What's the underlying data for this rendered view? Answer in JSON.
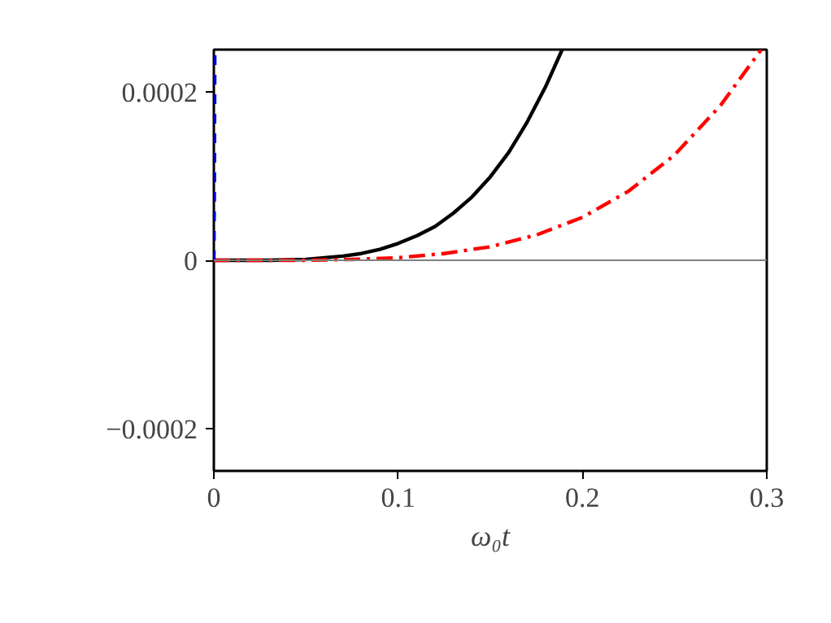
{
  "chart_data": {
    "type": "line",
    "xlabel": "ω₀t",
    "xlim": [
      0,
      0.3
    ],
    "xticks": [
      0,
      0.1,
      0.2,
      0.3
    ],
    "ylim": [
      -0.00025,
      0.00025
    ],
    "yticks": [
      {
        "value": -0.0002,
        "label": "−0.0002"
      },
      0,
      0.0002
    ],
    "grid": false,
    "marker": "none",
    "series": [
      {
        "color": "#000000",
        "line_style": "solid",
        "x": [
          0,
          0.03,
          0.05,
          0.06,
          0.07,
          0.08,
          0.09,
          0.1,
          0.11,
          0.12,
          0.13,
          0.14,
          0.15,
          0.16,
          0.17,
          0.18,
          0.189
        ],
        "values": [
          0,
          0,
          1e-06,
          3e-06,
          5e-06,
          8e-06,
          1.3e-05,
          2e-05,
          2.9e-05,
          4e-05,
          5.6e-05,
          7.5e-05,
          9.9e-05,
          0.000128,
          0.000164,
          0.000206,
          0.00025
        ]
      },
      {
        "color": "#ff0000",
        "line_style": "dashdot",
        "x": [
          0,
          0.05,
          0.075,
          0.1,
          0.125,
          0.15,
          0.175,
          0.2,
          0.225,
          0.25,
          0.275,
          0.297
        ],
        "values": [
          0,
          0,
          1e-06,
          3e-06,
          8e-06,
          1.6e-05,
          3e-05,
          5.1e-05,
          8.2e-05,
          0.000125,
          0.000184,
          0.00025
        ]
      },
      {
        "color": "#0000cc",
        "line_style": "dashed",
        "x": [
          0,
          0.0003,
          0.0005
        ],
        "values": [
          0,
          0.0001,
          0.00025
        ]
      }
    ],
    "ref_lines": [
      {
        "axis": "y",
        "value": 0,
        "color": "#808080",
        "line_style": "solid"
      }
    ]
  }
}
